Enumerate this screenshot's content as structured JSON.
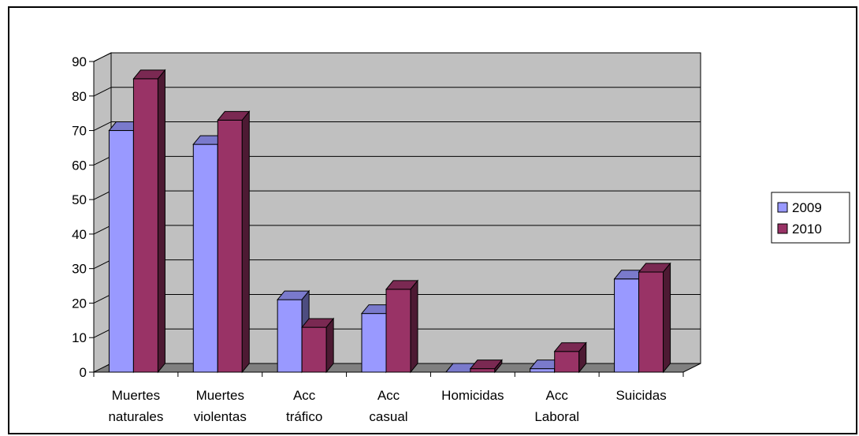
{
  "chart_data": {
    "type": "bar",
    "title": "",
    "xlabel": "",
    "ylabel": "",
    "categories": [
      [
        "Muertes",
        "naturales"
      ],
      [
        "Muertes",
        "violentas"
      ],
      [
        "Acc",
        "tráfico"
      ],
      [
        "Acc",
        "casual"
      ],
      [
        "Homicidas"
      ],
      [
        "Acc",
        "Laboral"
      ],
      [
        "Suicidas"
      ]
    ],
    "series": [
      {
        "name": "2009",
        "values": [
          70,
          66,
          21,
          17,
          0,
          1,
          27
        ]
      },
      {
        "name": "2010",
        "values": [
          85,
          73,
          13,
          24,
          1,
          6,
          29
        ]
      }
    ],
    "ylim": [
      0,
      90
    ],
    "yticks": [
      0,
      10,
      20,
      30,
      40,
      50,
      60,
      70,
      80,
      90
    ],
    "grid": true,
    "legend": "right",
    "style": "3d-clustered-column",
    "colors": {
      "plot_wall": "#c0c0c0",
      "plot_floor": "#808080",
      "series": [
        "#9999ff",
        "#993366"
      ],
      "series_side": [
        "#4d4d80",
        "#4d1a33"
      ],
      "series_top": [
        "#7a7acc",
        "#7a2952"
      ]
    }
  }
}
